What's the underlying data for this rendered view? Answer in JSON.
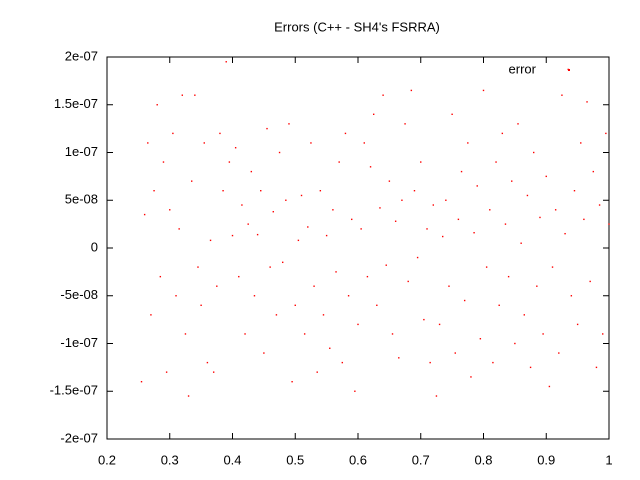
{
  "chart_data": {
    "type": "scatter",
    "title": "Errors (C++ - SH4's FSRRA)",
    "x": [
      0.255,
      0.26,
      0.265,
      0.27,
      0.275,
      0.28,
      0.285,
      0.29,
      0.295,
      0.3,
      0.305,
      0.31,
      0.315,
      0.32,
      0.325,
      0.33,
      0.335,
      0.34,
      0.345,
      0.35,
      0.355,
      0.36,
      0.365,
      0.37,
      0.375,
      0.38,
      0.385,
      0.39,
      0.395,
      0.4,
      0.405,
      0.41,
      0.415,
      0.42,
      0.425,
      0.43,
      0.435,
      0.44,
      0.445,
      0.45,
      0.455,
      0.46,
      0.465,
      0.47,
      0.475,
      0.48,
      0.485,
      0.49,
      0.495,
      0.5,
      0.505,
      0.51,
      0.515,
      0.52,
      0.525,
      0.53,
      0.535,
      0.54,
      0.545,
      0.55,
      0.555,
      0.56,
      0.565,
      0.57,
      0.575,
      0.58,
      0.585,
      0.59,
      0.595,
      0.6,
      0.605,
      0.61,
      0.615,
      0.62,
      0.625,
      0.63,
      0.635,
      0.64,
      0.645,
      0.65,
      0.655,
      0.66,
      0.665,
      0.67,
      0.675,
      0.68,
      0.685,
      0.69,
      0.695,
      0.7,
      0.705,
      0.71,
      0.715,
      0.72,
      0.725,
      0.73,
      0.735,
      0.74,
      0.745,
      0.75,
      0.755,
      0.76,
      0.765,
      0.77,
      0.775,
      0.78,
      0.785,
      0.79,
      0.795,
      0.8,
      0.805,
      0.81,
      0.815,
      0.82,
      0.825,
      0.83,
      0.835,
      0.84,
      0.845,
      0.85,
      0.855,
      0.86,
      0.865,
      0.87,
      0.875,
      0.88,
      0.885,
      0.89,
      0.895,
      0.9,
      0.905,
      0.91,
      0.915,
      0.92,
      0.925,
      0.93,
      0.935,
      0.94,
      0.945,
      0.95,
      0.955,
      0.96,
      0.965,
      0.97,
      0.975,
      0.98,
      0.985,
      0.99,
      0.995,
      1
    ],
    "series": [
      {
        "name": "error",
        "color": "#ff0000",
        "values": [
          -1.4e-07,
          3.5e-08,
          1.1e-07,
          -7e-08,
          6e-08,
          1.5e-07,
          -3e-08,
          9e-08,
          -1.3e-07,
          4e-08,
          1.2e-07,
          -5e-08,
          2e-08,
          1.6e-07,
          -9e-08,
          -1.55e-07,
          7e-08,
          1.6e-07,
          -2e-08,
          -6e-08,
          1.1e-07,
          -1.2e-07,
          8e-09,
          -1.3e-07,
          -4e-08,
          1.2e-07,
          6e-08,
          1.95e-07,
          9e-08,
          1.3e-08,
          1.05e-07,
          -3e-08,
          4.5e-08,
          -9e-08,
          2.5e-08,
          8e-08,
          -5e-08,
          1.4e-08,
          6e-08,
          -1.1e-07,
          1.25e-07,
          -2e-08,
          3.8e-08,
          -7e-08,
          1e-07,
          -1.5e-08,
          5e-08,
          1.3e-07,
          -1.4e-07,
          -6e-08,
          8e-09,
          5.5e-08,
          -9e-08,
          2.2e-08,
          1.1e-07,
          -4e-08,
          -1.3e-07,
          6e-08,
          -7e-08,
          1.3e-08,
          -1.05e-07,
          4e-08,
          -2.5e-08,
          9e-08,
          -1.2e-07,
          1.2e-07,
          -5e-08,
          3e-08,
          -1.5e-07,
          -8e-08,
          2e-08,
          1.1e-07,
          -3e-08,
          8.5e-08,
          1.4e-07,
          -6e-08,
          4.2e-08,
          1.6e-07,
          -1.8e-08,
          7e-08,
          -9e-08,
          2.8e-08,
          -1.15e-07,
          5e-08,
          1.3e-07,
          -3.5e-08,
          1.65e-07,
          6e-08,
          -1e-08,
          9e-08,
          -7.5e-08,
          2e-08,
          -1.2e-07,
          4.5e-08,
          -1.55e-07,
          -8e-08,
          1.2e-08,
          5e-08,
          -4e-08,
          1.4e-07,
          -1.1e-07,
          3e-08,
          8e-08,
          -5.5e-08,
          1.1e-07,
          -1.35e-07,
          1.6e-08,
          6.5e-08,
          -9.5e-08,
          1.65e-07,
          -2e-08,
          4e-08,
          -1.2e-07,
          9e-08,
          -6e-08,
          1.2e-07,
          2.5e-08,
          -3e-08,
          7e-08,
          -1e-07,
          1.3e-07,
          5e-09,
          -7e-08,
          5.5e-08,
          -1.25e-07,
          1e-07,
          -4e-08,
          3.2e-08,
          -9e-08,
          7.5e-08,
          -1.45e-07,
          -2e-08,
          4e-08,
          -1.1e-07,
          1.6e-07,
          1.5e-08,
          1.87e-07,
          -5e-08,
          6e-08,
          -8e-08,
          1.1e-07,
          3e-08,
          1.53e-07,
          -3.5e-08,
          8e-08,
          -1.25e-07,
          4.5e-08,
          -9e-08,
          1.2e-07,
          2.5e-08
        ]
      }
    ],
    "xlim": [
      0.2,
      1
    ],
    "xticks": [
      0.2,
      0.3,
      0.4,
      0.5,
      0.6,
      0.7,
      0.8,
      0.9,
      1
    ],
    "ylim": [
      -2e-07,
      2e-07
    ],
    "yticks": [
      {
        "value": -2e-07,
        "label": "-2e-07"
      },
      {
        "value": -1.5e-07,
        "label": "-1.5e-07"
      },
      {
        "value": -1e-07,
        "label": "-1e-07"
      },
      {
        "value": -5e-08,
        "label": "-5e-08"
      },
      0,
      {
        "value": 5e-08,
        "label": "5e-08"
      },
      {
        "value": 1e-07,
        "label": "1e-07"
      },
      {
        "value": 1.5e-07,
        "label": "1.5e-07"
      },
      {
        "value": 2e-07,
        "label": "2e-07"
      }
    ],
    "grid": false,
    "legend": "top-right"
  }
}
